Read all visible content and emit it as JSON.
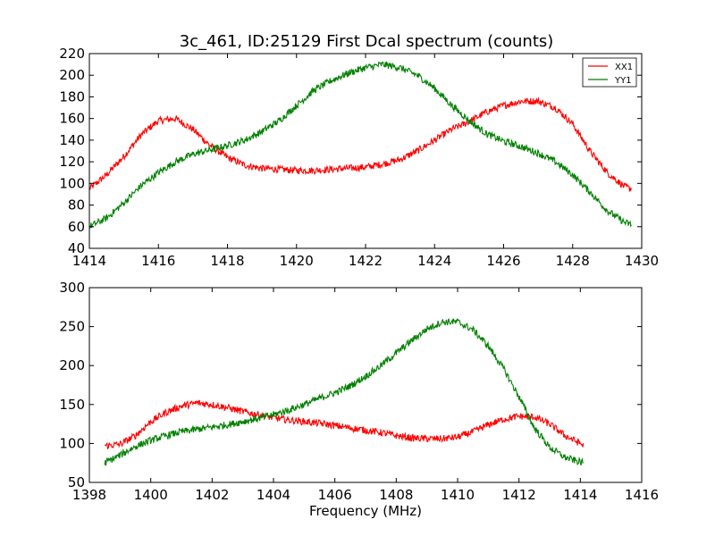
{
  "title": "3c_461, ID:25129 First Dcal spectrum (counts)",
  "legend": [
    {
      "name": "XX1",
      "color": "#ff0000"
    },
    {
      "name": "YY1",
      "color": "#008000"
    }
  ],
  "chart_data": [
    {
      "type": "line",
      "xlabel": "",
      "ylabel": "",
      "xlim": [
        1414,
        1430
      ],
      "ylim": [
        40,
        220
      ],
      "xticks": [
        1414,
        1416,
        1418,
        1420,
        1422,
        1424,
        1426,
        1428,
        1430
      ],
      "yticks": [
        40,
        60,
        80,
        100,
        120,
        140,
        160,
        180,
        200,
        220
      ],
      "grid": false,
      "legend_position": "top-right",
      "series": [
        {
          "name": "XX1",
          "color": "#ff0000",
          "x": [
            1414.0,
            1414.5,
            1415.0,
            1415.5,
            1416.0,
            1416.5,
            1417.0,
            1417.5,
            1418.0,
            1418.5,
            1419.0,
            1419.5,
            1420.0,
            1420.5,
            1421.0,
            1421.5,
            1422.0,
            1422.5,
            1423.0,
            1423.5,
            1424.0,
            1424.5,
            1425.0,
            1425.5,
            1426.0,
            1426.5,
            1427.0,
            1427.5,
            1428.0,
            1428.5,
            1429.0,
            1429.5,
            1429.7
          ],
          "y": [
            95,
            108,
            125,
            145,
            158,
            160,
            150,
            135,
            124,
            117,
            114,
            113,
            112,
            112,
            113,
            114,
            115,
            118,
            122,
            130,
            140,
            150,
            157,
            166,
            172,
            176,
            176,
            170,
            155,
            130,
            110,
            97,
            95
          ]
        },
        {
          "name": "YY1",
          "color": "#008000",
          "x": [
            1414.0,
            1414.5,
            1415.0,
            1415.5,
            1416.0,
            1416.5,
            1417.0,
            1417.5,
            1418.0,
            1418.5,
            1419.0,
            1419.5,
            1420.0,
            1420.5,
            1421.0,
            1421.5,
            1422.0,
            1422.5,
            1423.0,
            1423.5,
            1424.0,
            1424.5,
            1425.0,
            1425.5,
            1426.0,
            1426.5,
            1427.0,
            1427.5,
            1428.0,
            1428.5,
            1429.0,
            1429.5,
            1429.7
          ],
          "y": [
            60,
            68,
            82,
            98,
            110,
            120,
            127,
            131,
            135,
            140,
            148,
            158,
            172,
            186,
            195,
            202,
            207,
            210,
            207,
            200,
            188,
            172,
            158,
            146,
            139,
            134,
            128,
            120,
            108,
            92,
            75,
            64,
            62
          ]
        }
      ]
    },
    {
      "type": "line",
      "xlabel": "Frequency (MHz)",
      "ylabel": "",
      "xlim": [
        1398,
        1416
      ],
      "ylim": [
        50,
        300
      ],
      "xticks": [
        1398,
        1400,
        1402,
        1404,
        1406,
        1408,
        1410,
        1412,
        1414,
        1416
      ],
      "yticks": [
        50,
        100,
        150,
        200,
        250,
        300
      ],
      "grid": false,
      "series": [
        {
          "name": "XX1",
          "color": "#ff0000",
          "x": [
            1398.5,
            1399.0,
            1399.5,
            1400.0,
            1400.5,
            1401.0,
            1401.5,
            1402.0,
            1402.5,
            1403.0,
            1403.5,
            1404.0,
            1404.5,
            1405.0,
            1405.5,
            1406.0,
            1406.5,
            1407.0,
            1407.5,
            1408.0,
            1408.5,
            1409.0,
            1409.5,
            1410.0,
            1410.5,
            1411.0,
            1411.5,
            1412.0,
            1412.5,
            1413.0,
            1413.5,
            1414.0,
            1414.1
          ],
          "y": [
            97,
            99,
            110,
            128,
            140,
            148,
            152,
            150,
            146,
            141,
            137,
            133,
            130,
            128,
            126,
            123,
            120,
            117,
            114,
            110,
            107,
            106,
            106,
            108,
            115,
            124,
            131,
            135,
            134,
            125,
            110,
            100,
            97
          ]
        },
        {
          "name": "YY1",
          "color": "#008000",
          "x": [
            1398.5,
            1399.0,
            1399.5,
            1400.0,
            1400.5,
            1401.0,
            1401.5,
            1402.0,
            1402.5,
            1403.0,
            1403.5,
            1404.0,
            1404.5,
            1405.0,
            1405.5,
            1406.0,
            1406.5,
            1407.0,
            1407.5,
            1408.0,
            1408.5,
            1409.0,
            1409.5,
            1410.0,
            1410.5,
            1411.0,
            1411.5,
            1412.0,
            1412.5,
            1413.0,
            1413.5,
            1414.0,
            1414.1
          ],
          "y": [
            75,
            85,
            96,
            104,
            110,
            115,
            118,
            121,
            124,
            128,
            132,
            137,
            143,
            150,
            158,
            165,
            174,
            186,
            200,
            216,
            232,
            247,
            256,
            256,
            246,
            225,
            196,
            160,
            120,
            95,
            82,
            76,
            75
          ]
        }
      ]
    }
  ]
}
